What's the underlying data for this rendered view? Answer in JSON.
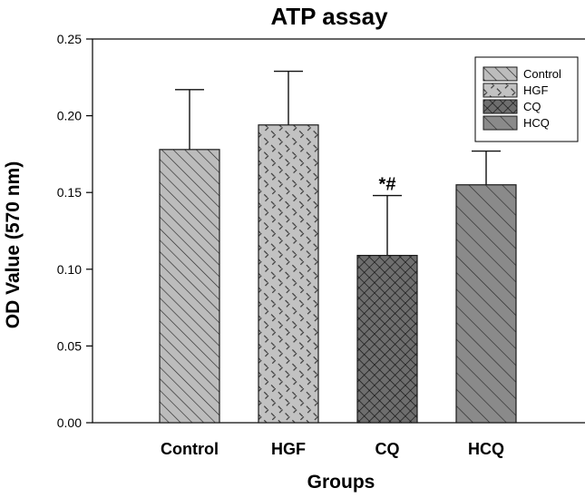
{
  "chart_data": {
    "type": "bar",
    "title": "ATP assay",
    "xlabel": "Groups",
    "ylabel": "OD Value (570 nm)",
    "ylim": [
      0,
      0.25
    ],
    "yticks": [
      0.0,
      0.05,
      0.1,
      0.15,
      0.2,
      0.25
    ],
    "ytick_labels": [
      "0.00",
      "0.05",
      "0.10",
      "0.15",
      "0.20",
      "0.25"
    ],
    "categories": [
      "Control",
      "HGF",
      "CQ",
      "HCQ"
    ],
    "values": [
      0.178,
      0.194,
      0.109,
      0.155
    ],
    "errors": [
      0.039,
      0.035,
      0.039,
      0.022
    ],
    "legend": {
      "position": "top-right",
      "entries": [
        "Control",
        "HGF",
        "CQ",
        "HCQ"
      ]
    },
    "annotations": [
      {
        "category": "CQ",
        "text": "*#"
      }
    ],
    "grid": false
  },
  "colors": {
    "control_fill": "#bcbcbc",
    "hgf_fill": "#bdbdbd",
    "cq_fill": "#6e6e6e",
    "hcq_fill": "#8a8a8a",
    "stroke": "#1a1a1a"
  }
}
